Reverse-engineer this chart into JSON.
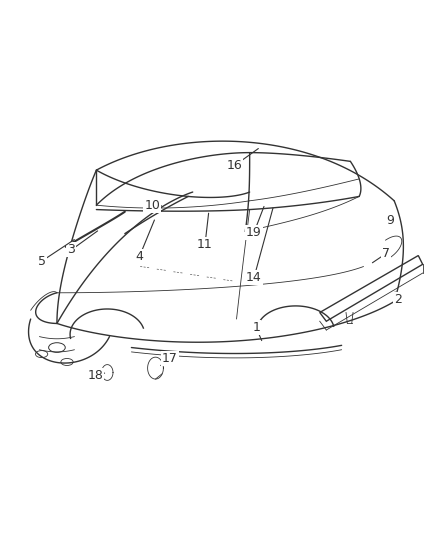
{
  "background_color": "#ffffff",
  "line_color": "#333333",
  "fig_width": 4.38,
  "fig_height": 5.33,
  "dpi": 100,
  "label_fontsize": 9
}
